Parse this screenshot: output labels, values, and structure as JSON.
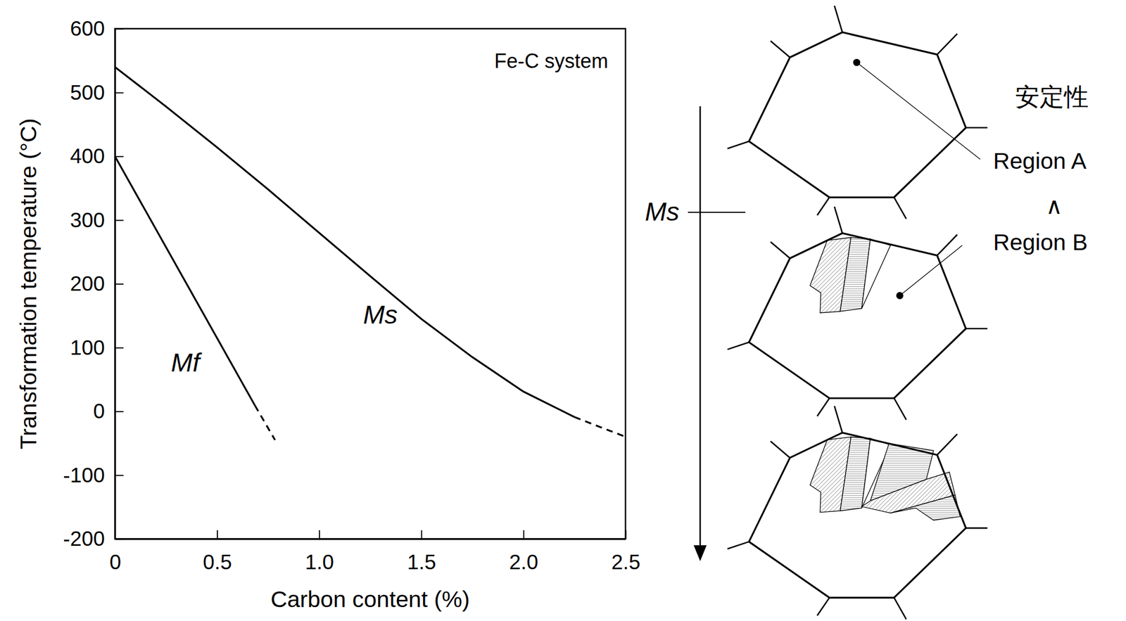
{
  "chart_data": {
    "type": "line",
    "title": "Fe-C system",
    "xlabel": "Carbon content (%)",
    "ylabel": "Transformation temperature (°C)",
    "xlim": [
      0,
      2.5
    ],
    "xticks": [
      0,
      0.5,
      {
        "value": 1,
        "label": "1.0"
      },
      1.5,
      {
        "value": 2,
        "label": "2.0"
      },
      2.5
    ],
    "ylim": [
      -200,
      600
    ],
    "yticks": [
      -200,
      -100,
      0,
      100,
      200,
      300,
      400,
      500,
      600
    ],
    "grid": false,
    "series": [
      {
        "color": "#000000",
        "line_style": "solid",
        "x": [
          0,
          0.25,
          0.5,
          0.75,
          1.0,
          1.25,
          1.5,
          1.75,
          2.0,
          2.25
        ],
        "values": [
          540,
          478,
          414,
          348,
          280,
          212,
          145,
          85,
          31,
          -9
        ]
      },
      {
        "color": "#000000",
        "line_style": "dashed",
        "x": [
          2.25,
          2.5
        ],
        "values": [
          -9,
          -40
        ]
      },
      {
        "color": "#000000",
        "line_style": "solid",
        "x": [
          0,
          0.686
        ],
        "values": [
          400,
          9
        ]
      },
      {
        "color": "#000000",
        "line_style": "dashed",
        "x": [
          0.686,
          0.784
        ],
        "values": [
          9,
          -45
        ]
      }
    ],
    "annotations": [
      {
        "text": "Ms",
        "x": 1.3,
        "y": 148
      },
      {
        "text": "Mf",
        "x": 0.345,
        "y": 73
      }
    ]
  },
  "diagram": {
    "arrow_label": "Ms",
    "stability_label": "安定性",
    "regions": [
      "Region A",
      "Region B"
    ],
    "relation": "∧"
  }
}
